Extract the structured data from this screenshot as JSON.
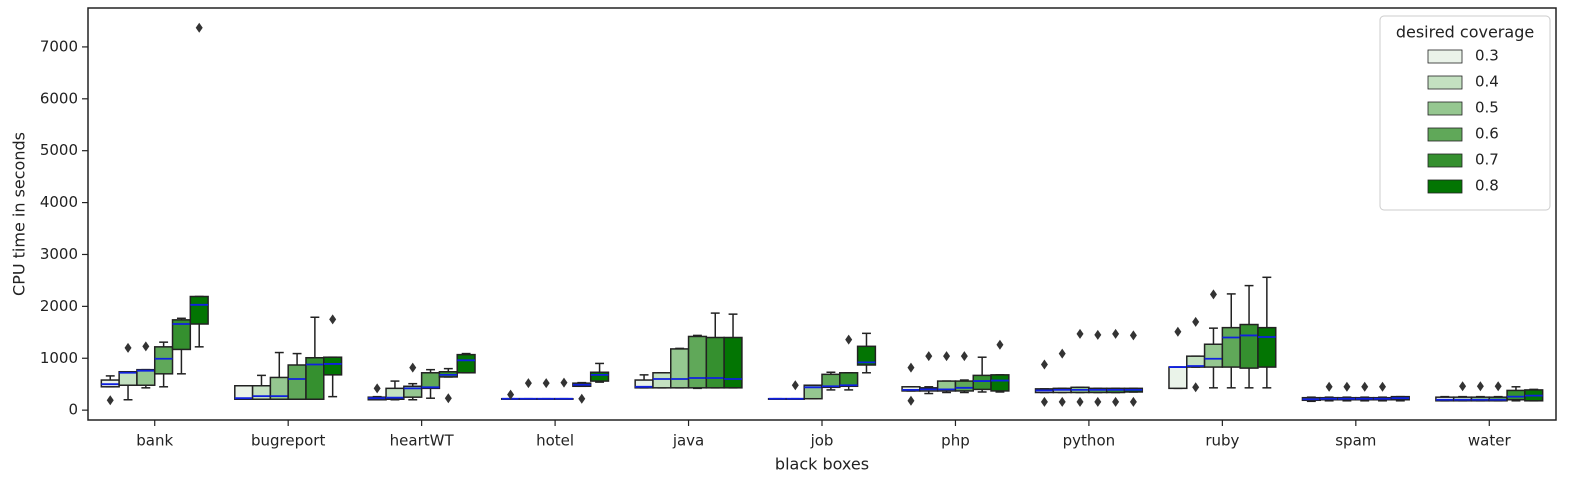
{
  "chart_data": {
    "type": "boxplot",
    "xlabel": "black boxes",
    "ylabel": "CPU time in seconds",
    "categories": [
      "bank",
      "bugreport",
      "heartWT",
      "hotel",
      "java",
      "job",
      "php",
      "python",
      "ruby",
      "spam",
      "water"
    ],
    "ylim": [
      -190,
      7750
    ],
    "yticks": [
      0,
      1000,
      2000,
      3000,
      4000,
      5000,
      6000,
      7000
    ],
    "legend_title": "desired coverage",
    "legend_loc": "upper right",
    "median_color": "#1020e0",
    "series": [
      {
        "name": "0.3",
        "color": "#eaf3e9",
        "boxes": [
          {
            "whislo": 450,
            "q1": 450,
            "med": 500,
            "q3": 580,
            "whishi": 660,
            "fliers": [
              190
            ]
          },
          {
            "whislo": 210,
            "q1": 210,
            "med": 230,
            "q3": 470,
            "whishi": 470,
            "fliers": []
          },
          {
            "whislo": 200,
            "q1": 200,
            "med": 230,
            "q3": 250,
            "whishi": 260,
            "fliers": [
              420
            ]
          },
          {
            "whislo": 220,
            "q1": 220,
            "med": 220,
            "q3": 220,
            "whishi": 220,
            "fliers": [
              300
            ]
          },
          {
            "whislo": 430,
            "q1": 430,
            "med": 450,
            "q3": 580,
            "whishi": 680,
            "fliers": []
          },
          {
            "whislo": 220,
            "q1": 220,
            "med": 220,
            "q3": 220,
            "whishi": 220,
            "fliers": []
          },
          {
            "whislo": 370,
            "q1": 370,
            "med": 390,
            "q3": 450,
            "whishi": 450,
            "fliers": [
              180,
              820
            ]
          },
          {
            "whislo": 340,
            "q1": 340,
            "med": 380,
            "q3": 410,
            "whishi": 410,
            "fliers": [
              880,
              160
            ]
          },
          {
            "whislo": 420,
            "q1": 420,
            "med": 830,
            "q3": 830,
            "whishi": 830,
            "fliers": [
              1510
            ]
          },
          {
            "whislo": 170,
            "q1": 190,
            "med": 210,
            "q3": 240,
            "whishi": 250,
            "fliers": []
          },
          {
            "whislo": 180,
            "q1": 180,
            "med": 200,
            "q3": 250,
            "whishi": 260,
            "fliers": []
          }
        ]
      },
      {
        "name": "0.4",
        "color": "#c4e1c1",
        "boxes": [
          {
            "whislo": 200,
            "q1": 480,
            "med": 720,
            "q3": 740,
            "whishi": 740,
            "fliers": [
              1200
            ]
          },
          {
            "whislo": 210,
            "q1": 210,
            "med": 270,
            "q3": 470,
            "whishi": 670,
            "fliers": []
          },
          {
            "whislo": 200,
            "q1": 210,
            "med": 240,
            "q3": 420,
            "whishi": 560,
            "fliers": []
          },
          {
            "whislo": 220,
            "q1": 220,
            "med": 220,
            "q3": 220,
            "whishi": 220,
            "fliers": [
              520
            ]
          },
          {
            "whislo": 430,
            "q1": 430,
            "med": 600,
            "q3": 720,
            "whishi": 720,
            "fliers": []
          },
          {
            "whislo": 220,
            "q1": 220,
            "med": 220,
            "q3": 220,
            "whishi": 220,
            "fliers": [
              480
            ]
          },
          {
            "whislo": 320,
            "q1": 370,
            "med": 400,
            "q3": 430,
            "whishi": 450,
            "fliers": [
              1040
            ]
          },
          {
            "whislo": 340,
            "q1": 340,
            "med": 390,
            "q3": 420,
            "whishi": 420,
            "fliers": [
              1090,
              160
            ]
          },
          {
            "whislo": 830,
            "q1": 830,
            "med": 850,
            "q3": 1040,
            "whishi": 1040,
            "fliers": [
              1700,
              440
            ]
          },
          {
            "whislo": 180,
            "q1": 200,
            "med": 220,
            "q3": 240,
            "whishi": 250,
            "fliers": [
              450
            ]
          },
          {
            "whislo": 180,
            "q1": 180,
            "med": 200,
            "q3": 250,
            "whishi": 260,
            "fliers": [
              460
            ]
          }
        ]
      },
      {
        "name": "0.5",
        "color": "#95c790",
        "boxes": [
          {
            "whislo": 430,
            "q1": 480,
            "med": 760,
            "q3": 780,
            "whishi": 780,
            "fliers": [
              1230
            ]
          },
          {
            "whislo": 210,
            "q1": 210,
            "med": 270,
            "q3": 630,
            "whishi": 1110,
            "fliers": []
          },
          {
            "whislo": 200,
            "q1": 250,
            "med": 420,
            "q3": 460,
            "whishi": 510,
            "fliers": [
              820
            ]
          },
          {
            "whislo": 220,
            "q1": 220,
            "med": 220,
            "q3": 220,
            "whishi": 220,
            "fliers": [
              520
            ]
          },
          {
            "whislo": 430,
            "q1": 430,
            "med": 600,
            "q3": 1180,
            "whishi": 1190,
            "fliers": []
          },
          {
            "whislo": 220,
            "q1": 220,
            "med": 440,
            "q3": 480,
            "whishi": 480,
            "fliers": []
          },
          {
            "whislo": 340,
            "q1": 370,
            "med": 400,
            "q3": 560,
            "whishi": 560,
            "fliers": [
              1040
            ]
          },
          {
            "whislo": 340,
            "q1": 340,
            "med": 390,
            "q3": 440,
            "whishi": 440,
            "fliers": [
              1470,
              160
            ]
          },
          {
            "whislo": 430,
            "q1": 830,
            "med": 990,
            "q3": 1270,
            "whishi": 1580,
            "fliers": [
              2230
            ]
          },
          {
            "whislo": 180,
            "q1": 200,
            "med": 220,
            "q3": 240,
            "whishi": 250,
            "fliers": [
              450
            ]
          },
          {
            "whislo": 180,
            "q1": 180,
            "med": 200,
            "q3": 250,
            "whishi": 260,
            "fliers": [
              460
            ]
          }
        ]
      },
      {
        "name": "0.6",
        "color": "#60a859",
        "boxes": [
          {
            "whislo": 450,
            "q1": 700,
            "med": 990,
            "q3": 1220,
            "whishi": 1310,
            "fliers": []
          },
          {
            "whislo": 210,
            "q1": 210,
            "med": 600,
            "q3": 870,
            "whishi": 1090,
            "fliers": []
          },
          {
            "whislo": 230,
            "q1": 420,
            "med": 440,
            "q3": 720,
            "whishi": 780,
            "fliers": []
          },
          {
            "whislo": 220,
            "q1": 220,
            "med": 220,
            "q3": 220,
            "whishi": 220,
            "fliers": [
              530
            ]
          },
          {
            "whislo": 420,
            "q1": 430,
            "med": 620,
            "q3": 1420,
            "whishi": 1440,
            "fliers": []
          },
          {
            "whislo": 390,
            "q1": 440,
            "med": 460,
            "q3": 690,
            "whishi": 730,
            "fliers": []
          },
          {
            "whislo": 340,
            "q1": 370,
            "med": 430,
            "q3": 560,
            "whishi": 580,
            "fliers": [
              1040
            ]
          },
          {
            "whislo": 340,
            "q1": 340,
            "med": 390,
            "q3": 420,
            "whishi": 420,
            "fliers": [
              1450,
              160
            ]
          },
          {
            "whislo": 430,
            "q1": 830,
            "med": 1400,
            "q3": 1590,
            "whishi": 2240,
            "fliers": []
          },
          {
            "whislo": 180,
            "q1": 200,
            "med": 220,
            "q3": 240,
            "whishi": 250,
            "fliers": [
              450
            ]
          },
          {
            "whislo": 180,
            "q1": 180,
            "med": 200,
            "q3": 250,
            "whishi": 260,
            "fliers": [
              460
            ]
          }
        ]
      },
      {
        "name": "0.7",
        "color": "#35902f",
        "boxes": [
          {
            "whislo": 700,
            "q1": 1170,
            "med": 1660,
            "q3": 1740,
            "whishi": 1770,
            "fliers": []
          },
          {
            "whislo": 210,
            "q1": 210,
            "med": 880,
            "q3": 1010,
            "whishi": 1790,
            "fliers": []
          },
          {
            "whislo": 640,
            "q1": 640,
            "med": 680,
            "q3": 740,
            "whishi": 800,
            "fliers": [
              230
            ]
          },
          {
            "whislo": 460,
            "q1": 460,
            "med": 490,
            "q3": 520,
            "whishi": 530,
            "fliers": [
              220
            ]
          },
          {
            "whislo": 430,
            "q1": 430,
            "med": 620,
            "q3": 1400,
            "whishi": 1870,
            "fliers": []
          },
          {
            "whislo": 390,
            "q1": 460,
            "med": 480,
            "q3": 720,
            "whishi": 720,
            "fliers": [
              1360
            ]
          },
          {
            "whislo": 350,
            "q1": 400,
            "med": 560,
            "q3": 670,
            "whishi": 1020,
            "fliers": []
          },
          {
            "whislo": 340,
            "q1": 340,
            "med": 390,
            "q3": 420,
            "whishi": 420,
            "fliers": [
              1470,
              160
            ]
          },
          {
            "whislo": 430,
            "q1": 810,
            "med": 1440,
            "q3": 1650,
            "whishi": 2400,
            "fliers": []
          },
          {
            "whislo": 180,
            "q1": 200,
            "med": 220,
            "q3": 240,
            "whishi": 250,
            "fliers": [
              450
            ]
          },
          {
            "whislo": 180,
            "q1": 200,
            "med": 260,
            "q3": 380,
            "whishi": 450,
            "fliers": []
          }
        ]
      },
      {
        "name": "0.8",
        "color": "#037503",
        "boxes": [
          {
            "whislo": 1220,
            "q1": 1660,
            "med": 2030,
            "q3": 2190,
            "whishi": 2190,
            "fliers": [
              7370
            ]
          },
          {
            "whislo": 260,
            "q1": 680,
            "med": 890,
            "q3": 1020,
            "whishi": 1020,
            "fliers": [
              1750
            ]
          },
          {
            "whislo": 720,
            "q1": 720,
            "med": 960,
            "q3": 1070,
            "whishi": 1090,
            "fliers": []
          },
          {
            "whislo": 540,
            "q1": 560,
            "med": 680,
            "q3": 730,
            "whishi": 900,
            "fliers": []
          },
          {
            "whislo": 430,
            "q1": 430,
            "med": 600,
            "q3": 1400,
            "whishi": 1850,
            "fliers": []
          },
          {
            "whislo": 720,
            "q1": 870,
            "med": 920,
            "q3": 1230,
            "whishi": 1480,
            "fliers": []
          },
          {
            "whislo": 350,
            "q1": 370,
            "med": 570,
            "q3": 680,
            "whishi": 680,
            "fliers": [
              1260
            ]
          },
          {
            "whislo": 350,
            "q1": 350,
            "med": 390,
            "q3": 420,
            "whishi": 420,
            "fliers": [
              1440,
              160
            ]
          },
          {
            "whislo": 430,
            "q1": 830,
            "med": 1410,
            "q3": 1590,
            "whishi": 2560,
            "fliers": []
          },
          {
            "whislo": 180,
            "q1": 200,
            "med": 230,
            "q3": 260,
            "whishi": 260,
            "fliers": []
          },
          {
            "whislo": 180,
            "q1": 180,
            "med": 280,
            "q3": 390,
            "whishi": 400,
            "fliers": []
          }
        ]
      }
    ]
  }
}
